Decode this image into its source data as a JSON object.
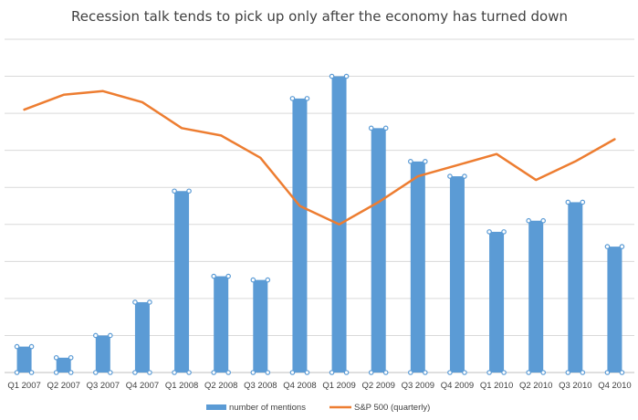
{
  "chart_data": {
    "type": "bar",
    "title": "Recession talk tends to pick up only after the economy has turned down",
    "xlabel": "",
    "ylabel": "",
    "categories": [
      "Q1 2007",
      "Q2 2007",
      "Q3 2007",
      "Q4 2007",
      "Q1 2008",
      "Q2 2008",
      "Q3 2008",
      "Q4 2008",
      "Q1 2009",
      "Q2 2009",
      "Q3 2009",
      "Q4 2009",
      "Q1 2010",
      "Q2 2010",
      "Q3 2010",
      "Q4 2010"
    ],
    "series": [
      {
        "name": "number of mentions",
        "type": "bar",
        "color": "#5b9bd5",
        "values": [
          7,
          4,
          10,
          19,
          49,
          26,
          25,
          74,
          80,
          66,
          57,
          53,
          38,
          41,
          46,
          34
        ]
      },
      {
        "name": "S&P 500 (quarterly)",
        "type": "line",
        "color": "#ed7d31",
        "values": [
          71,
          75,
          76,
          73,
          66,
          64,
          58,
          45,
          40,
          46,
          53,
          56,
          59,
          52,
          57,
          63
        ]
      }
    ],
    "ylim": [
      0,
      90
    ],
    "grid": true,
    "legend": "bottom"
  }
}
